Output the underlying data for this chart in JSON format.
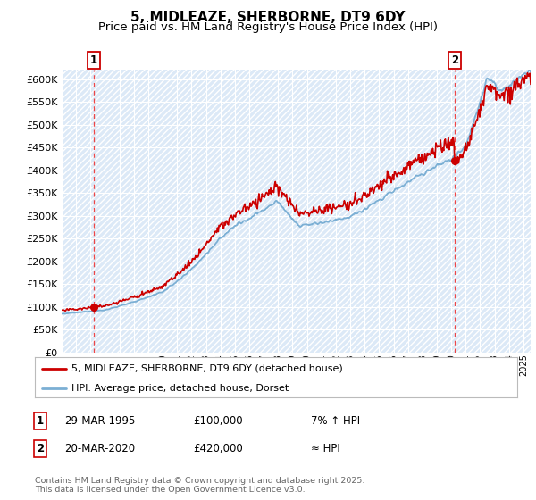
{
  "title": "5, MIDLEAZE, SHERBORNE, DT9 6DY",
  "subtitle": "Price paid vs. HM Land Registry's House Price Index (HPI)",
  "ylim": [
    0,
    620000
  ],
  "yticks": [
    0,
    50000,
    100000,
    150000,
    200000,
    250000,
    300000,
    350000,
    400000,
    450000,
    500000,
    550000,
    600000
  ],
  "ytick_labels": [
    "£0",
    "£50K",
    "£100K",
    "£150K",
    "£200K",
    "£250K",
    "£300K",
    "£350K",
    "£400K",
    "£450K",
    "£500K",
    "£550K",
    "£600K"
  ],
  "hpi_color": "#7bafd4",
  "price_color": "#cc0000",
  "marker1_date": 1995.23,
  "marker1_price": 100000,
  "marker2_date": 2020.22,
  "marker2_price": 420000,
  "legend_line1": "5, MIDLEAZE, SHERBORNE, DT9 6DY (detached house)",
  "legend_line2": "HPI: Average price, detached house, Dorset",
  "footer": "Contains HM Land Registry data © Crown copyright and database right 2025.\nThis data is licensed under the Open Government Licence v3.0.",
  "bg_color": "#dce9f7",
  "grid_color": "#ffffff",
  "title_fontsize": 11,
  "subtitle_fontsize": 9.5,
  "xstart": 1993,
  "xend": 2025.5
}
